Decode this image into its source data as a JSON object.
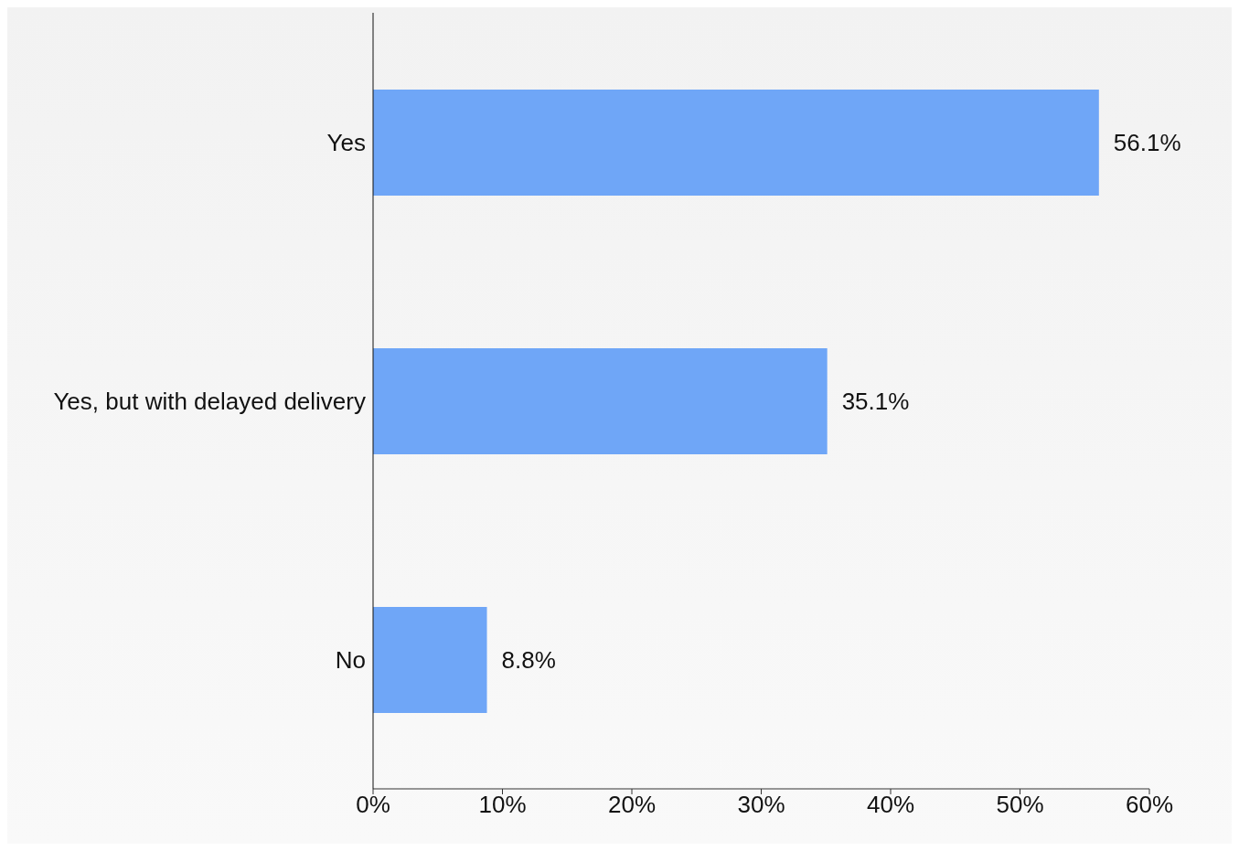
{
  "chart_data": {
    "type": "bar",
    "orientation": "horizontal",
    "categories": [
      "Yes",
      "Yes, but with delayed delivery",
      "No"
    ],
    "values": [
      56.1,
      35.1,
      8.8
    ],
    "value_labels": [
      "56.1%",
      "35.1%",
      "8.8%"
    ],
    "color": "#6fa6f7",
    "xlim": [
      0,
      60
    ],
    "xticks": [
      {
        "value": 0,
        "label": "0%"
      },
      {
        "value": 10,
        "label": "10%"
      },
      {
        "value": 20,
        "label": "20%"
      },
      {
        "value": 30,
        "label": "30%"
      },
      {
        "value": 40,
        "label": "40%"
      },
      {
        "value": 50,
        "label": "50%"
      },
      {
        "value": 60,
        "label": "60%"
      }
    ],
    "grid": false
  }
}
